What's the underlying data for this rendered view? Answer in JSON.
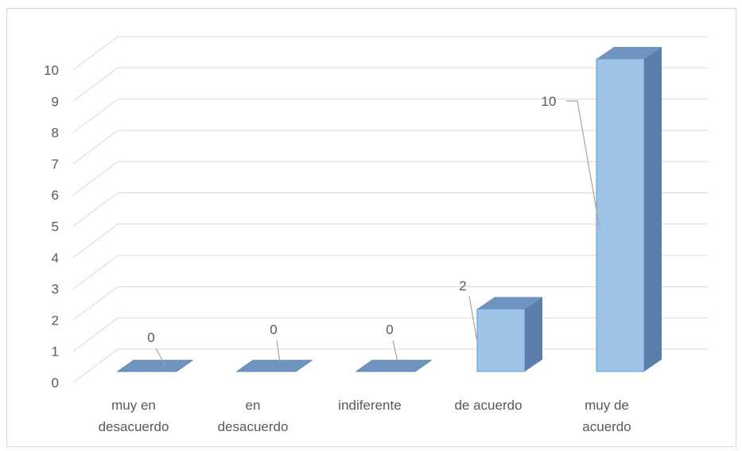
{
  "chart_data": {
    "type": "bar",
    "categories": [
      [
        "muy en",
        "desacuerdo"
      ],
      [
        "en",
        "desacuerdo"
      ],
      [
        "indiferente"
      ],
      [
        "de acuerdo"
      ],
      [
        "muy de",
        "acuerdo"
      ]
    ],
    "values": [
      0,
      0,
      0,
      2,
      10
    ],
    "data_labels": [
      "0",
      "0",
      "0",
      "2",
      "10"
    ],
    "yticks": [
      "0",
      "1",
      "2",
      "3",
      "4",
      "5",
      "6",
      "7",
      "8",
      "9",
      "10"
    ],
    "ylim": [
      0,
      10
    ],
    "grid": true,
    "style": "3d-column",
    "colors": {
      "bar_front": "#9dc3e6",
      "bar_side": "#5b7fa8",
      "bar_top": "#6f94bf",
      "grid": "#d9d9d9",
      "text": "#595959"
    }
  }
}
